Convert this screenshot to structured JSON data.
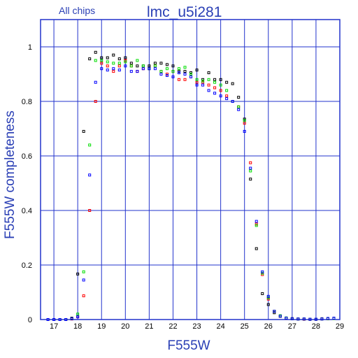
{
  "chart_data": {
    "type": "scatter",
    "title": "lmc_u5i281",
    "subtitle": "All chips",
    "xlabel": "F555W",
    "ylabel": "F555W  completeness",
    "xlim": [
      16.44,
      29
    ],
    "ylim": [
      0,
      1.1
    ],
    "xticks": [
      17,
      18,
      19,
      20,
      21,
      22,
      23,
      24,
      25,
      26,
      27,
      28,
      29
    ],
    "yticks": [
      0,
      0.2,
      0.4,
      0.6,
      0.8,
      1
    ],
    "grid": true,
    "x": [
      16.75,
      17,
      17.25,
      17.5,
      17.75,
      18,
      18.25,
      18.5,
      18.75,
      19,
      19.25,
      19.5,
      19.75,
      20,
      20.25,
      20.5,
      20.75,
      21,
      21.25,
      21.5,
      21.75,
      22,
      22.25,
      22.5,
      22.75,
      23,
      23.25,
      23.5,
      23.75,
      24,
      24.25,
      24.5,
      24.75,
      25,
      25.25,
      25.5,
      25.75,
      26,
      26.25,
      26.5,
      26.75,
      27,
      27.25,
      27.5,
      27.75,
      28,
      28.25,
      28.5,
      28.75
    ],
    "series": [
      {
        "color": "#000000",
        "values": [
          0,
          0,
          0,
          0,
          0.005,
          0.167,
          0.69,
          0.956,
          0.98,
          0.96,
          0.96,
          0.97,
          0.956,
          0.96,
          0.94,
          0.93,
          0.93,
          0.93,
          0.94,
          0.94,
          0.935,
          0.93,
          0.91,
          0.91,
          0.905,
          0.915,
          0.88,
          0.905,
          0.88,
          0.88,
          0.87,
          0.865,
          0.815,
          0.735,
          0.515,
          0.26,
          0.095,
          0.055,
          0.025,
          0.012,
          0.005,
          0.003,
          0.002,
          0.002,
          0.001,
          0.001,
          0.003,
          0.003,
          0.005
        ]
      },
      {
        "color": "#ff0000",
        "values": [
          0,
          0,
          0,
          0,
          0.002,
          0.01,
          0.087,
          0.4,
          0.8,
          0.94,
          0.93,
          0.91,
          0.93,
          0.95,
          0.93,
          0.91,
          0.92,
          0.92,
          0.93,
          0.91,
          0.9,
          0.91,
          0.88,
          0.88,
          0.89,
          0.87,
          0.87,
          0.86,
          0.85,
          0.84,
          0.82,
          0.8,
          0.78,
          0.72,
          0.575,
          0.35,
          0.165,
          0.075,
          0.03,
          0.012,
          0.005,
          0.003,
          0.002,
          0.001,
          0.001,
          0.001,
          0.002,
          0.003,
          0.004
        ]
      },
      {
        "color": "#00dd00",
        "values": [
          0,
          0,
          0,
          0,
          0.003,
          0.02,
          0.175,
          0.64,
          0.95,
          0.95,
          0.945,
          0.94,
          0.94,
          0.945,
          0.93,
          0.95,
          0.93,
          0.92,
          0.93,
          0.91,
          0.92,
          0.91,
          0.92,
          0.925,
          0.9,
          0.88,
          0.875,
          0.88,
          0.87,
          0.86,
          0.84,
          0.8,
          0.78,
          0.73,
          0.545,
          0.345,
          0.17,
          0.08,
          0.03,
          0.014,
          0.006,
          0.003,
          0.002,
          0.002,
          0.001,
          0.001,
          0.002,
          0.003,
          0.004
        ]
      },
      {
        "color": "#0000ff",
        "values": [
          0,
          0,
          0,
          0,
          0.003,
          0.01,
          0.145,
          0.53,
          0.87,
          0.92,
          0.915,
          0.92,
          0.915,
          0.93,
          0.91,
          0.91,
          0.92,
          0.92,
          0.92,
          0.9,
          0.895,
          0.89,
          0.905,
          0.9,
          0.89,
          0.86,
          0.86,
          0.84,
          0.83,
          0.82,
          0.81,
          0.8,
          0.77,
          0.69,
          0.555,
          0.36,
          0.175,
          0.085,
          0.03,
          0.012,
          0.005,
          0.003,
          0.002,
          0.002,
          0.001,
          0.001,
          0.002,
          0.004,
          0.005
        ]
      }
    ]
  }
}
